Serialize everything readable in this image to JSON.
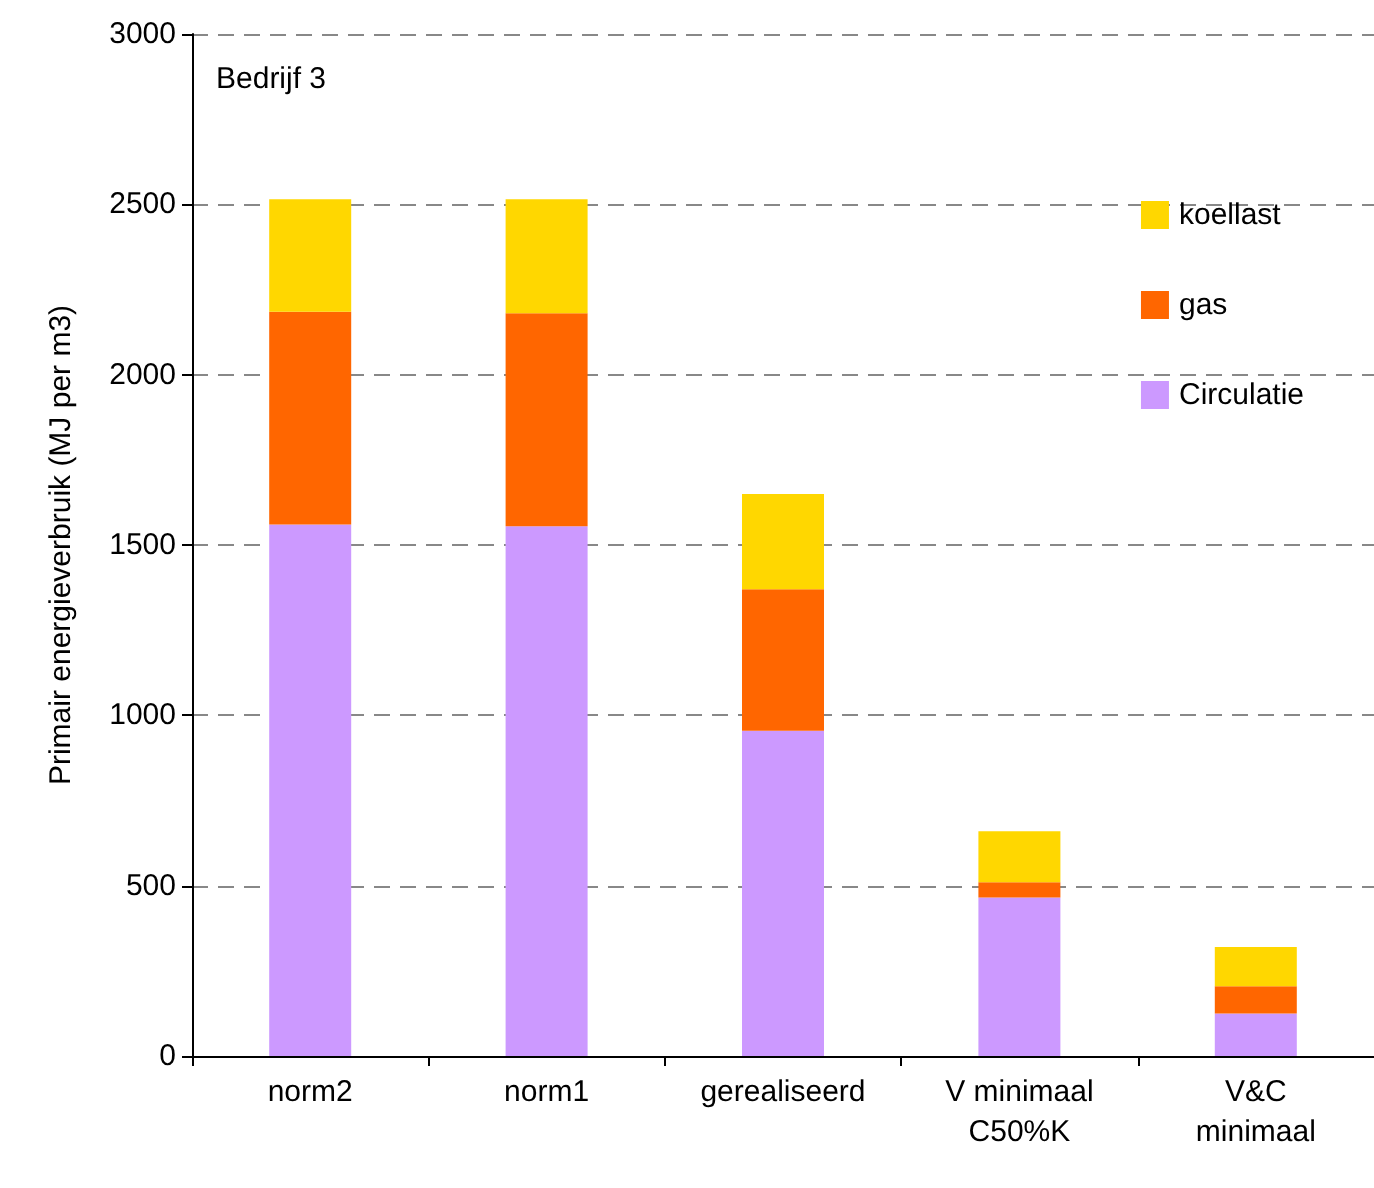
{
  "chart_data": {
    "type": "bar",
    "stacked": true,
    "ylabel": "Primair energieverbruik (MJ per m3)",
    "annotations": [
      "Bedrijf 3"
    ],
    "categories": [
      "norm2",
      "norm1",
      "gerealiseerd",
      "V minimaal\nC50%K",
      "V&C\nminimaal"
    ],
    "series": [
      {
        "name": "Circulatie",
        "color": "#cc99ff",
        "values": [
          1560,
          1555,
          955,
          465,
          125
        ]
      },
      {
        "name": "gas",
        "color": "#ff6600",
        "values": [
          625,
          625,
          415,
          45,
          80
        ]
      },
      {
        "name": "koellast",
        "color": "#ffd700",
        "values": [
          330,
          335,
          280,
          150,
          115
        ]
      }
    ],
    "ylim": [
      0,
      3000
    ],
    "yticks": [
      0,
      500,
      1000,
      1500,
      2000,
      2500,
      3000
    ],
    "grid": "y",
    "legend": "top right"
  }
}
